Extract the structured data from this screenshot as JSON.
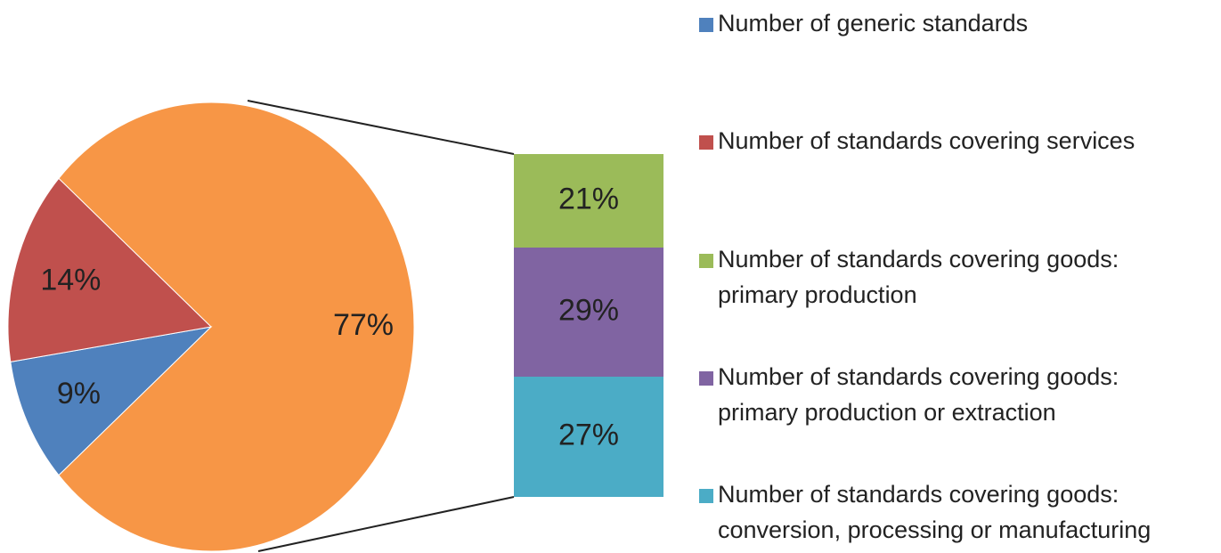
{
  "chart_data": {
    "type": "bar-of-pie",
    "pie": {
      "categories": [
        [
          "Number of generic standards"
        ],
        [
          "Number of standards covering services"
        ],
        null
      ],
      "values": [
        9,
        14,
        77
      ],
      "value_labels": [
        "9%",
        "14%",
        "77%"
      ],
      "colors": [
        "#4f81bd",
        "#c0504d",
        "#f79646"
      ]
    },
    "bar": {
      "categories": [
        [
          "Number of standards covering goods:",
          "primary production"
        ],
        [
          "Number of standards covering goods:",
          "primary production or extraction"
        ],
        [
          "Number of standards covering goods:",
          "conversion, processing or manufacturing"
        ]
      ],
      "values": [
        21,
        29,
        27
      ],
      "value_labels": [
        "21%",
        "29%",
        "27%"
      ],
      "colors": [
        "#9bbb59",
        "#8064a2",
        "#4bacc6"
      ]
    }
  }
}
